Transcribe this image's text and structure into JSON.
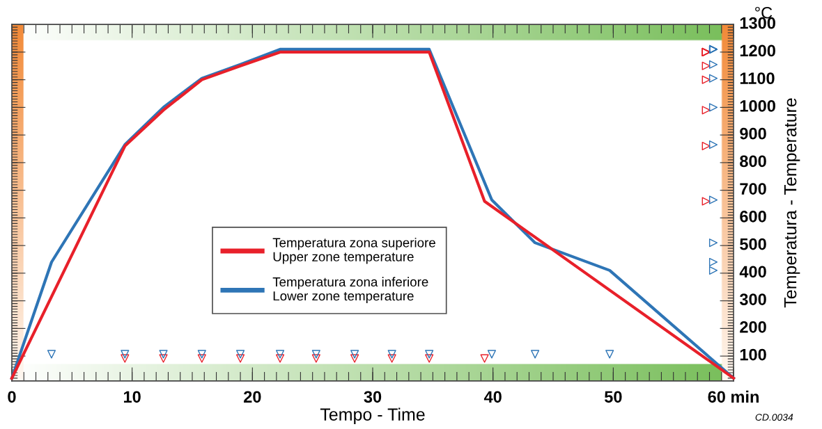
{
  "chart_data": {
    "type": "line",
    "xlabel": "Tempo - Time",
    "ylabel": "Temperatura - Temperature",
    "annotations": [
      "°C",
      "CD.0034"
    ],
    "xlim": [
      0,
      60
    ],
    "xticks": [
      0,
      10,
      20,
      30,
      40,
      50,
      {
        "value": 60,
        "label": "60 min"
      }
    ],
    "ylim": [
      10,
      1300
    ],
    "yticks": [
      100,
      200,
      300,
      400,
      500,
      600,
      700,
      800,
      900,
      1000,
      1100,
      1200,
      1300
    ],
    "tick_labels": "xy",
    "grid": false,
    "legend": "center",
    "marker": "none",
    "line_style": "solid",
    "series": [
      {
        "name": "Temperatura zona superiore\nUpper zone temperature",
        "color": "#e8202a",
        "x": [
          0,
          9.4,
          12.6,
          15.8,
          19.0,
          22.3,
          25.3,
          28.5,
          31.6,
          34.7,
          39.3,
          60
        ],
        "values": [
          20,
          860,
          990,
          1100,
          1150,
          1200,
          1200,
          1200,
          1200,
          1200,
          660,
          20
        ]
      },
      {
        "name": "Temperatura zona inferiore\nLower zone temperature",
        "color": "#2e75b6",
        "x": [
          0,
          3.3,
          9.4,
          12.6,
          15.8,
          19.0,
          22.3,
          25.3,
          28.5,
          31.6,
          34.7,
          39.9,
          43.5,
          49.7,
          60
        ],
        "values": [
          20,
          440,
          865,
          1000,
          1105,
          1155,
          1210,
          1210,
          1210,
          1210,
          1210,
          665,
          510,
          410,
          20
        ]
      }
    ]
  }
}
